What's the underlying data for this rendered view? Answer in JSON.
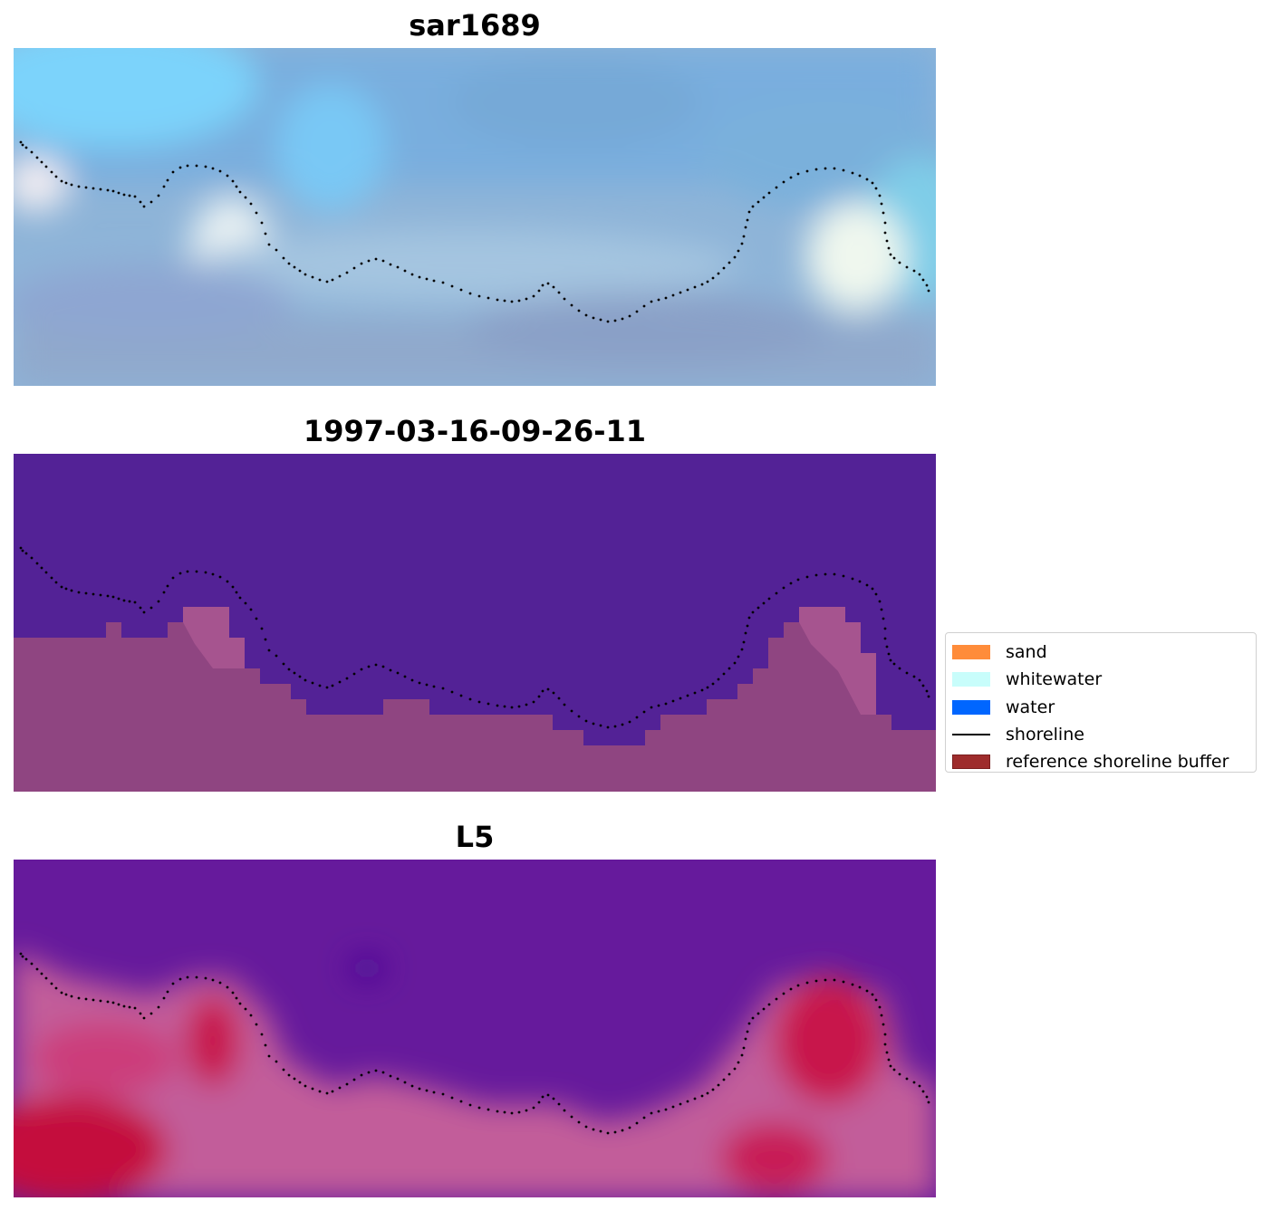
{
  "panels": [
    {
      "title": "sar1689"
    },
    {
      "title": "1997-03-16-09-26-11"
    },
    {
      "title": "L5"
    }
  ],
  "legend": {
    "placement": "center-right",
    "items": [
      {
        "label": "sand",
        "kind": "patch",
        "color": "#ff8c3a",
        "edge": "#ff8c3a"
      },
      {
        "label": "whitewater",
        "kind": "patch",
        "color": "#c8fdfb",
        "edge": "#c8fdfb"
      },
      {
        "label": "water",
        "kind": "patch",
        "color": "#0066ff",
        "edge": "#0066ff"
      },
      {
        "label": "shoreline",
        "kind": "line",
        "color": "#000000"
      },
      {
        "label": "reference shoreline buffer",
        "kind": "patch",
        "color": "#9e2c2c",
        "edge": "#7a1e1e"
      }
    ]
  },
  "colors": {
    "mask_water": "#532296",
    "mask_land": "#8f4581",
    "shoreline_dots": "#000000"
  }
}
